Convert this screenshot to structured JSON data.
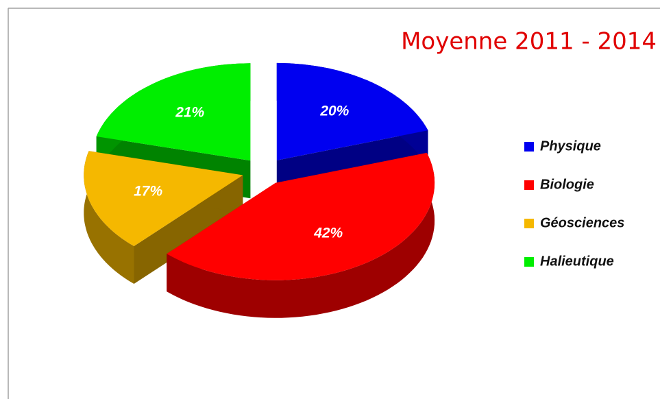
{
  "chart_data": {
    "type": "pie",
    "title": "Moyenne 2011 - 2014",
    "categories": [
      "Physique",
      "Biologie",
      "Géosciences",
      "Halieutique"
    ],
    "values": [
      20,
      42,
      17,
      21
    ],
    "value_labels": [
      "20%",
      "42%",
      "17%",
      "21%"
    ],
    "colors": [
      "#0000f0",
      "#ff0000",
      "#f5b800",
      "#00ee00"
    ],
    "legend": "right"
  }
}
